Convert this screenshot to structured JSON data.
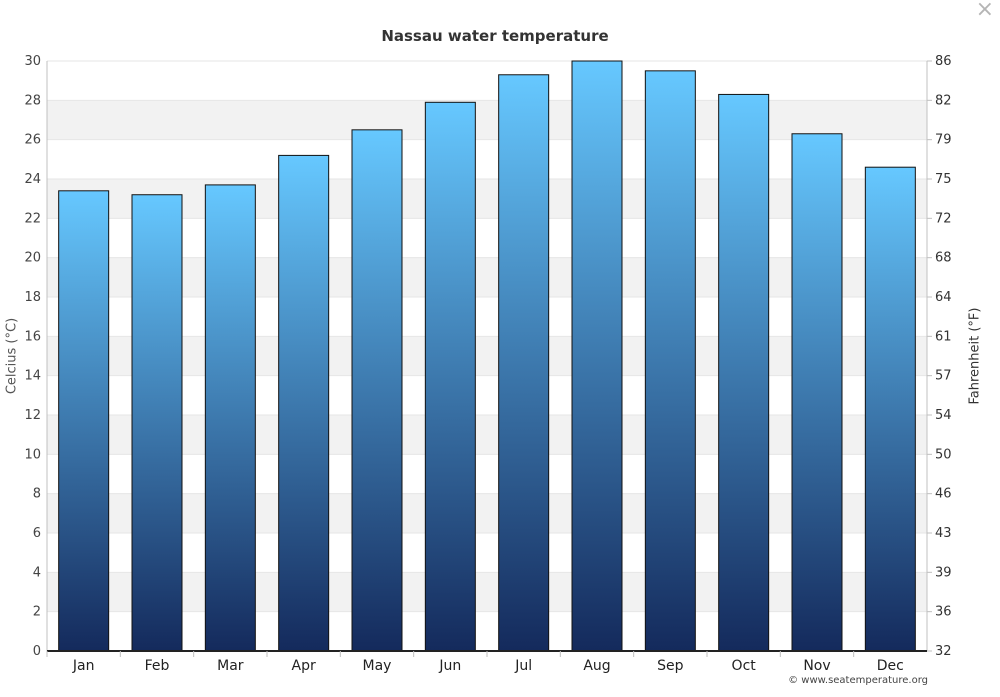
{
  "window": {
    "close_label": "×"
  },
  "chart_data": {
    "type": "bar",
    "title": "Nassau water temperature",
    "categories": [
      "Jan",
      "Feb",
      "Mar",
      "Apr",
      "May",
      "Jun",
      "Jul",
      "Aug",
      "Sep",
      "Oct",
      "Nov",
      "Dec"
    ],
    "series": [
      {
        "values": [
          23.4,
          23.2,
          23.7,
          25.2,
          26.5,
          27.9,
          29.3,
          30.0,
          29.5,
          28.3,
          26.3,
          24.6
        ]
      }
    ],
    "ylabel": "Celcius (°C)",
    "ylabel_right": "Fahrenheit (°F)",
    "ylim": [
      0,
      30
    ],
    "yticks": [
      0,
      2,
      4,
      6,
      8,
      10,
      12,
      14,
      16,
      18,
      20,
      22,
      24,
      26,
      28,
      30
    ],
    "yticks_right": [
      "32",
      "36",
      "39",
      "43",
      "46",
      "50",
      "54",
      "57",
      "61",
      "64",
      "68",
      "72",
      "75",
      "79",
      "82",
      "86"
    ],
    "grid": "alternating horizontal bands",
    "bar_gradient": {
      "top": "#66c8ff",
      "bottom": "#142a5c"
    },
    "credit": "© www.seatemperature.org"
  }
}
